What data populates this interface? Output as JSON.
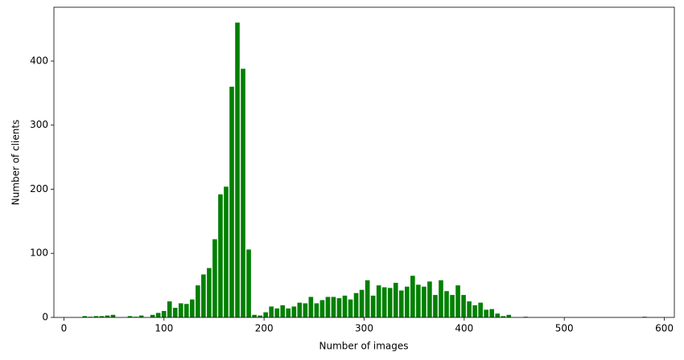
{
  "chart_data": {
    "type": "histogram",
    "xlabel": "Number of images",
    "ylabel": "Number of clients",
    "color": "#008000",
    "bins": [
      18,
      23.65,
      29.3,
      34.95,
      40.6,
      46.25,
      51.9,
      57.55,
      63.2,
      68.85,
      74.5,
      80.15,
      85.8,
      91.45,
      97.1,
      102.75,
      108.4,
      114.05,
      119.7,
      125.35,
      131,
      136.65,
      142.3,
      147.95,
      153.6,
      159.25,
      164.9,
      170.55,
      176.2,
      181.85,
      187.5,
      193.15,
      198.8,
      204.45,
      210.1,
      215.75,
      221.4,
      227.05,
      232.7,
      238.35,
      244,
      249.65,
      255.3,
      260.95,
      266.6,
      272.25,
      277.9,
      283.55,
      289.2,
      294.85,
      300.5,
      306.15,
      311.8,
      317.45,
      323.1,
      328.75,
      334.4,
      340.05,
      345.7,
      351.35,
      357,
      362.65,
      368.3,
      373.95,
      379.6,
      385.25,
      390.9,
      396.55,
      402.2,
      407.85,
      413.5,
      419.15,
      424.8,
      430.45,
      436.1,
      441.75,
      447.4,
      453.05,
      458.7,
      464.35,
      470,
      475.65,
      481.3,
      486.95,
      492.6,
      498.25,
      503.9,
      509.55,
      515.2,
      520.85,
      526.5,
      532.15,
      537.8,
      543.45,
      549.1,
      554.75,
      560.4,
      566.05,
      571.7,
      577.35,
      583
    ],
    "values": [
      2,
      1,
      2,
      2,
      3,
      4,
      0,
      0,
      2,
      1,
      3,
      0,
      4,
      7,
      10,
      25,
      15,
      22,
      21,
      28,
      50,
      67,
      77,
      122,
      192,
      204,
      360,
      460,
      388,
      106,
      4,
      3,
      8,
      17,
      14,
      19,
      14,
      17,
      23,
      22,
      32,
      22,
      27,
      32,
      32,
      30,
      34,
      28,
      38,
      43,
      58,
      34,
      50,
      47,
      46,
      54,
      42,
      48,
      65,
      51,
      48,
      56,
      35,
      58,
      41,
      35,
      50,
      35,
      25,
      19,
      23,
      12,
      13,
      6,
      2,
      4,
      0,
      0,
      1,
      0,
      0,
      0,
      0,
      0,
      0,
      0,
      0,
      0,
      0,
      0,
      0,
      0,
      0,
      0,
      0,
      0,
      0,
      0,
      0,
      1
    ],
    "xlim": [
      -10,
      610
    ],
    "ylim": [
      0,
      484
    ],
    "xticks": [
      0,
      100,
      200,
      300,
      400,
      500,
      600
    ],
    "yticks": [
      0,
      100,
      200,
      300,
      400
    ]
  }
}
